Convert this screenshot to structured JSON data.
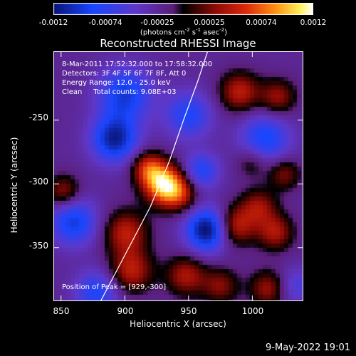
{
  "colorbar": {
    "ticks": [
      "-0.0012",
      "-0.00074",
      "-0.00025",
      "0.00025",
      "0.00074",
      "0.0012"
    ],
    "units_pre": "(photons cm",
    "units_exp1": "-2",
    "units_mid1": " s",
    "units_exp2": "-1",
    "units_mid2": " asec",
    "units_exp3": "-2",
    "units_post": ")"
  },
  "chart_data": {
    "type": "heatmap",
    "title": "Reconstructed RHESSI Image",
    "xlabel": "Heliocentric X (arcsec)",
    "ylabel": "Heliocentric Y (arcsec)",
    "xlim": [
      844,
      1040
    ],
    "ylim": [
      -392,
      -196
    ],
    "xticks": [
      850,
      900,
      950,
      1000
    ],
    "yticks": [
      -250,
      -300,
      -350
    ],
    "clim": [
      -0.0012,
      0.0012
    ],
    "colormap": "RHESSI purple-blue-black-red-yellow-white",
    "peak": [
      929,
      -300
    ],
    "sources": [
      {
        "x": 930,
        "y": -300,
        "amp": 1.0,
        "r": 11
      },
      {
        "x": 918,
        "y": -287,
        "amp": 0.55,
        "r": 9
      },
      {
        "x": 943,
        "y": -308,
        "amp": 0.5,
        "r": 10
      },
      {
        "x": 901,
        "y": -338,
        "amp": 0.55,
        "r": 12
      },
      {
        "x": 905,
        "y": -368,
        "amp": 0.55,
        "r": 12
      },
      {
        "x": 948,
        "y": -372,
        "amp": 0.5,
        "r": 11
      },
      {
        "x": 986,
        "y": -333,
        "amp": 0.6,
        "r": 11
      },
      {
        "x": 1005,
        "y": -318,
        "amp": 0.45,
        "r": 10
      },
      {
        "x": 1018,
        "y": -338,
        "amp": 0.5,
        "r": 10
      },
      {
        "x": 1012,
        "y": -382,
        "amp": 0.45,
        "r": 10
      },
      {
        "x": 975,
        "y": -380,
        "amp": 0.4,
        "r": 10
      },
      {
        "x": 990,
        "y": -228,
        "amp": 0.55,
        "r": 11
      },
      {
        "x": 1020,
        "y": -232,
        "amp": 0.45,
        "r": 10
      },
      {
        "x": 1025,
        "y": -292,
        "amp": 0.4,
        "r": 9
      },
      {
        "x": 852,
        "y": -306,
        "amp": 0.45,
        "r": 9
      },
      {
        "x": 1000,
        "y": -283,
        "amp": 0.3,
        "r": 9
      },
      {
        "x": 900,
        "y": -230,
        "amp": -0.6,
        "r": 15
      },
      {
        "x": 950,
        "y": -246,
        "amp": -0.5,
        "r": 13
      },
      {
        "x": 892,
        "y": -265,
        "amp": -0.75,
        "r": 13
      },
      {
        "x": 860,
        "y": -330,
        "amp": -0.6,
        "r": 13
      },
      {
        "x": 965,
        "y": -336,
        "amp": -0.9,
        "r": 12
      },
      {
        "x": 1010,
        "y": -265,
        "amp": -0.55,
        "r": 14
      },
      {
        "x": 878,
        "y": -385,
        "amp": -0.5,
        "r": 12
      },
      {
        "x": 960,
        "y": -290,
        "amp": -0.5,
        "r": 10
      },
      {
        "x": 1035,
        "y": -380,
        "amp": -0.3,
        "r": 10
      }
    ],
    "limb_curve": [
      [
        881,
        -392
      ],
      [
        900,
        -356
      ],
      [
        920,
        -318
      ],
      [
        935,
        -282
      ],
      [
        946,
        -250
      ],
      [
        957,
        -220
      ],
      [
        965,
        -196
      ]
    ]
  },
  "info": {
    "time_range": "8-Mar-2011 17:52:32.000 to 17:58:32.000",
    "detectors": "Detectors: 3F 4F 5F 6F 7F 8F, Att 0",
    "energy": "Energy Range: 12.0 - 25.0 keV",
    "method_counts": "Clean     Total counts: 9.08E+03",
    "peak_label": "Position of Peak = [929,-300]"
  },
  "axes": {
    "xtick_labels": [
      "850",
      "900",
      "950",
      "1000"
    ],
    "ytick_labels": [
      "-250",
      "-300",
      "-350"
    ]
  },
  "footer": {
    "date": "9-May-2022 19:01"
  }
}
